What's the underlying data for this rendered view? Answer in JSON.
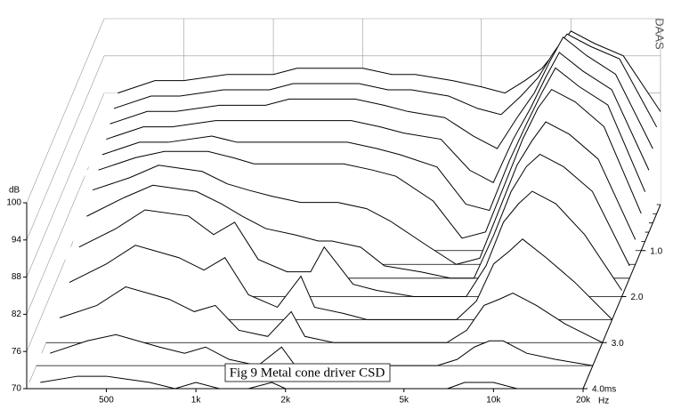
{
  "chart_data": {
    "type": "waterfall",
    "title": "Fig 9 Metal cone driver CSD",
    "x_label": "Hz",
    "y_label": "dB",
    "watermark": "DAAS",
    "log_x": true,
    "grid": true,
    "color": "#000000",
    "xlim": [
      270,
      20000
    ],
    "xticks": [
      500,
      {
        "value": 1000,
        "label": "1k"
      },
      {
        "value": 2000,
        "label": "2k"
      },
      {
        "value": 5000,
        "label": "5k"
      },
      {
        "value": 10000,
        "label": "10k"
      },
      {
        "value": 20000,
        "label": "20k"
      }
    ],
    "ylim": [
      70,
      100
    ],
    "yticks": [
      70,
      76,
      82,
      88,
      94,
      100
    ],
    "tlim": [
      0,
      4
    ],
    "tticks": [
      {
        "value": 1,
        "label": "1.0"
      },
      {
        "value": 2,
        "label": "2.0"
      },
      {
        "value": 3,
        "label": "3.0"
      },
      {
        "value": 4,
        "label": "4.0ms"
      }
    ],
    "x": [
      300,
      400,
      500,
      700,
      850,
      1000,
      1200,
      1500,
      1800,
      2000,
      2500,
      3000,
      4000,
      5000,
      6000,
      7000,
      8000,
      9000,
      10000,
      12000,
      15000,
      20000
    ],
    "slices": [
      {
        "t": 0,
        "values": [
          88,
          90,
          90,
          91,
          91,
          91,
          92,
          92,
          92,
          92,
          91,
          91,
          90,
          89,
          88,
          90,
          92,
          95,
          98,
          96,
          94,
          85
        ]
      },
      {
        "t": 0.2,
        "values": [
          87,
          89,
          89,
          90,
          90,
          90,
          91,
          91,
          91,
          91,
          90,
          90,
          89,
          87,
          86,
          89,
          92,
          96,
          99,
          97,
          95,
          84
        ]
      },
      {
        "t": 0.4,
        "values": [
          86,
          88,
          88,
          89,
          89,
          89,
          90,
          90,
          90,
          90,
          89,
          88,
          87,
          84,
          82,
          87,
          91,
          96,
          100,
          97,
          94,
          82
        ]
      },
      {
        "t": 0.6,
        "values": [
          85,
          87,
          87,
          88,
          88,
          88,
          88,
          88,
          88,
          88,
          87,
          86,
          85,
          80,
          78,
          85,
          90,
          95,
          99,
          96,
          93,
          80
        ]
      },
      {
        "t": 0.8,
        "values": [
          84,
          86,
          86,
          87,
          86,
          86,
          86,
          86,
          86,
          86,
          85,
          84,
          82,
          76,
          75,
          83,
          89,
          94,
          98,
          95,
          92,
          78
        ]
      },
      {
        "t": 1,
        "values": [
          83,
          85,
          86,
          86,
          85,
          84,
          84,
          84,
          84,
          84,
          83,
          82,
          78,
          72,
          73,
          81,
          88,
          93,
          96,
          94,
          90,
          76
        ]
      },
      {
        "t": 1.3,
        "values": [
          82,
          84,
          86,
          85,
          83,
          82,
          81,
          80,
          80,
          80,
          79,
          77,
          73,
          70,
          71,
          79,
          86,
          90,
          93,
          91,
          87,
          74
        ]
      },
      {
        "t": 1.6,
        "values": [
          80,
          83,
          85,
          84,
          82,
          80,
          78,
          77,
          76,
          76,
          75,
          72,
          71,
          70,
          70,
          77,
          84,
          88,
          90,
          88,
          84,
          72
        ]
      },
      {
        "t": 2,
        "values": [
          78,
          81,
          84,
          83,
          80,
          82,
          76,
          74,
          74,
          78,
          72,
          71,
          70,
          70,
          70,
          75,
          82,
          85,
          87,
          85,
          80,
          71
        ]
      },
      {
        "t": 2.5,
        "values": [
          76,
          79,
          82,
          80,
          78,
          80,
          74,
          72,
          77,
          72,
          71,
          70,
          70,
          70,
          70,
          73,
          79,
          81,
          83,
          80,
          76,
          70
        ]
      },
      {
        "t": 3,
        "values": [
          74,
          76,
          79,
          77,
          75,
          76,
          72,
          71,
          75,
          71,
          70,
          70,
          70,
          70,
          70,
          72,
          76,
          77,
          78,
          76,
          73,
          70
        ]
      },
      {
        "t": 3.5,
        "values": [
          72,
          74,
          75,
          73,
          72,
          73,
          71,
          70,
          73,
          70,
          70,
          70,
          70,
          70,
          70,
          71,
          73,
          74,
          74,
          72,
          71,
          70
        ]
      },
      {
        "t": 4,
        "values": [
          71,
          72,
          72,
          71,
          70,
          71,
          70,
          70,
          71,
          70,
          70,
          70,
          70,
          70,
          70,
          70,
          71,
          71,
          71,
          70,
          70,
          70
        ]
      }
    ]
  }
}
